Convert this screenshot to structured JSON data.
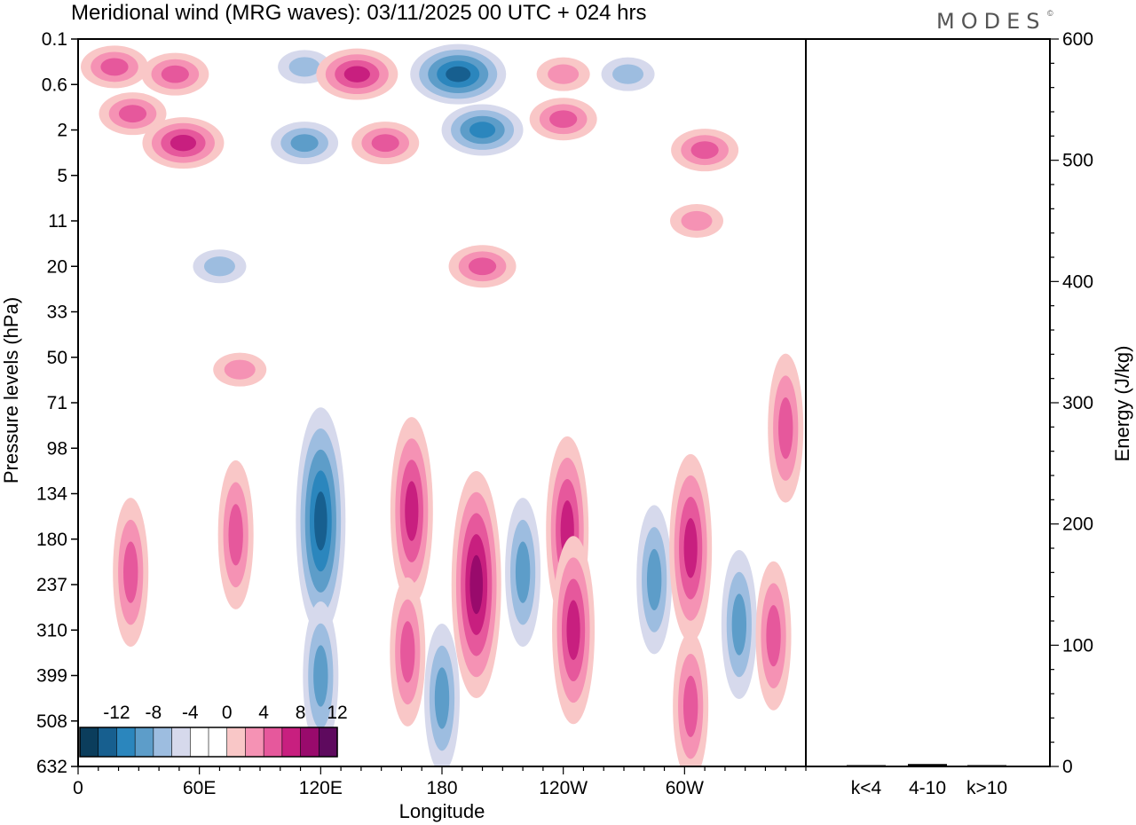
{
  "title": "Meridional wind (MRG waves):  03/11/2025  00 UTC  + 024 hrs",
  "logo": "MODES",
  "logo_mark": "©",
  "chart_data": [
    {
      "type": "heatmap",
      "title": "Meridional wind (MRG waves):  03/11/2025  00 UTC  + 024 hrs",
      "xlabel": "Longitude",
      "ylabel": "Pressure levels (hPa)",
      "x_ticks": [
        "0",
        "60E",
        "120E",
        "180",
        "120W",
        "60W"
      ],
      "x_tick_degrees": [
        0,
        60,
        120,
        180,
        240,
        300
      ],
      "xlim": [
        0,
        360
      ],
      "y_levels": [
        "0.1",
        "0.6",
        "2",
        "5",
        "11",
        "20",
        "33",
        "50",
        "71",
        "98",
        "134",
        "180",
        "237",
        "310",
        "399",
        "508",
        "632"
      ],
      "colorbar": {
        "labels": [
          "-12",
          "-8",
          "-4",
          "0",
          "4",
          "8",
          "12"
        ],
        "bin_colors": [
          "#0b3d5c",
          "#175f8f",
          "#2b86bd",
          "#5d9dc9",
          "#9dbde0",
          "#d6d9ec",
          "#ffffff",
          "#ffffff",
          "#f9c7c7",
          "#f592b4",
          "#e6589c",
          "#c81f7f",
          "#990a6c",
          "#5e0a5e"
        ]
      },
      "features": [
        {
          "lon": 18,
          "level": "0.3",
          "sign": "positive",
          "strength": 2
        },
        {
          "lon": 48,
          "level": "0.4",
          "sign": "positive",
          "strength": 2
        },
        {
          "lon": 27,
          "level": "1.3",
          "sign": "positive",
          "strength": 2
        },
        {
          "lon": 52,
          "level": "2.6",
          "sign": "positive",
          "strength": 3
        },
        {
          "lon": 112,
          "level": "0.3",
          "sign": "negative",
          "strength": 1
        },
        {
          "lon": 112,
          "level": "2.6",
          "sign": "negative",
          "strength": 2
        },
        {
          "lon": 138,
          "level": "0.4",
          "sign": "positive",
          "strength": 3
        },
        {
          "lon": 152,
          "level": "2.6",
          "sign": "positive",
          "strength": 2
        },
        {
          "lon": 188,
          "level": "0.4",
          "sign": "negative",
          "strength": 4
        },
        {
          "lon": 200,
          "level": "2",
          "sign": "negative",
          "strength": 3
        },
        {
          "lon": 240,
          "level": "0.4",
          "sign": "positive",
          "strength": 1
        },
        {
          "lon": 240,
          "level": "1.5",
          "sign": "positive",
          "strength": 2
        },
        {
          "lon": 272,
          "level": "0.4",
          "sign": "negative",
          "strength": 1
        },
        {
          "lon": 310,
          "level": "3",
          "sign": "positive",
          "strength": 2
        },
        {
          "lon": 306,
          "level": "11",
          "sign": "positive",
          "strength": 1
        },
        {
          "lon": 200,
          "level": "20",
          "sign": "positive",
          "strength": 2
        },
        {
          "lon": 70,
          "level": "20",
          "sign": "negative",
          "strength": 1
        },
        {
          "lon": 80,
          "level": "55",
          "sign": "positive",
          "strength": 1
        },
        {
          "lon": 120,
          "level": "160",
          "sign": "negative",
          "strength": 4
        },
        {
          "lon": 120,
          "level": "400",
          "sign": "negative",
          "strength": 2
        },
        {
          "lon": 165,
          "level": "150",
          "sign": "positive",
          "strength": 3
        },
        {
          "lon": 163,
          "level": "350",
          "sign": "positive",
          "strength": 2
        },
        {
          "lon": 180,
          "level": "450",
          "sign": "negative",
          "strength": 2
        },
        {
          "lon": 197,
          "level": "237",
          "sign": "positive",
          "strength": 4
        },
        {
          "lon": 220,
          "level": "220",
          "sign": "negative",
          "strength": 2
        },
        {
          "lon": 242,
          "level": "170",
          "sign": "positive",
          "strength": 3
        },
        {
          "lon": 245,
          "level": "310",
          "sign": "positive",
          "strength": 3
        },
        {
          "lon": 285,
          "level": "230",
          "sign": "negative",
          "strength": 2
        },
        {
          "lon": 303,
          "level": "190",
          "sign": "positive",
          "strength": 3
        },
        {
          "lon": 303,
          "level": "470",
          "sign": "positive",
          "strength": 2
        },
        {
          "lon": 327,
          "level": "300",
          "sign": "negative",
          "strength": 2
        },
        {
          "lon": 344,
          "level": "320",
          "sign": "positive",
          "strength": 2
        },
        {
          "lon": 350,
          "level": "85",
          "sign": "positive",
          "strength": 2
        },
        {
          "lon": 78,
          "level": "175",
          "sign": "positive",
          "strength": 2
        },
        {
          "lon": 26,
          "level": "220",
          "sign": "positive",
          "strength": 2
        }
      ]
    },
    {
      "type": "bar",
      "categories": [
        "k<4",
        "4-10",
        "k>10"
      ],
      "values": [
        0.5,
        2,
        0.5
      ],
      "ylabel": "Energy (J/kg)",
      "ylim": [
        0,
        600
      ],
      "y_ticks": [
        "0",
        "100",
        "200",
        "300",
        "400",
        "500",
        "600"
      ]
    }
  ]
}
